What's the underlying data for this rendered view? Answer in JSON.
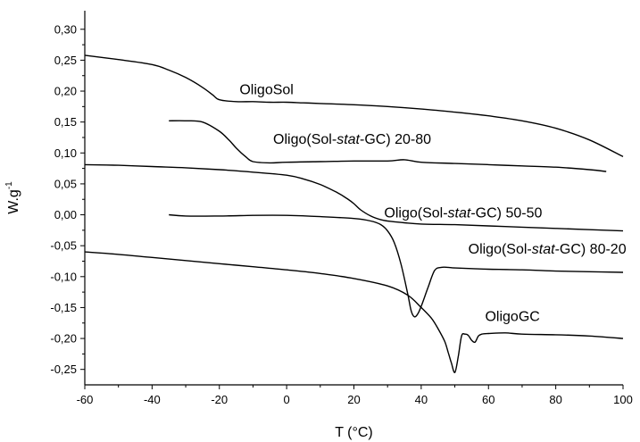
{
  "chart_data": {
    "type": "line",
    "xlabel": "T (°C)",
    "ylabel": "W.g",
    "ylabel_sup": "-1",
    "xlim": [
      -60,
      100
    ],
    "ylim": [
      -0.275,
      0.33
    ],
    "xticks": [
      -60,
      -40,
      -20,
      0,
      20,
      40,
      60,
      80,
      100
    ],
    "xtick_labels": [
      "-60",
      "-40",
      "-20",
      "0",
      "20",
      "40",
      "60",
      "80",
      "100"
    ],
    "yticks": [
      -0.25,
      -0.2,
      -0.15,
      -0.1,
      -0.05,
      0.0,
      0.05,
      0.1,
      0.15,
      0.2,
      0.25,
      0.3
    ],
    "ytick_labels": [
      "-0,25",
      "-0,20",
      "-0,15",
      "-0,10",
      "-0,05",
      "0,00",
      "0,05",
      "0,10",
      "0,15",
      "0,20",
      "0,25",
      "0,30"
    ],
    "grid": false,
    "series": [
      {
        "name": "OligoSol",
        "label": "OligoSol",
        "label_at": [
          -14,
          0.195
        ],
        "x": [
          -60,
          -50,
          -40,
          -35,
          -30,
          -25,
          -22,
          -20,
          -15,
          -10,
          -5,
          0,
          5,
          10,
          20,
          30,
          40,
          50,
          60,
          70,
          80,
          90,
          100
        ],
        "y": [
          0.258,
          0.251,
          0.243,
          0.234,
          0.222,
          0.206,
          0.194,
          0.186,
          0.183,
          0.183,
          0.182,
          0.182,
          0.181,
          0.18,
          0.178,
          0.175,
          0.171,
          0.166,
          0.16,
          0.152,
          0.14,
          0.121,
          0.094
        ]
      },
      {
        "name": "Oligo(Sol-stat-GC) 20-80",
        "label": "Oligo(Sol-stat-GC) 20-80",
        "label_pre": "Oligo(Sol-",
        "label_italic": "stat",
        "label_post": "-GC) 20-80",
        "label_at": [
          -4,
          0.115
        ],
        "x": [
          -35,
          -30,
          -25,
          -20,
          -17,
          -15,
          -12,
          -10,
          -5,
          0,
          10,
          20,
          30,
          35,
          40,
          50,
          60,
          70,
          80,
          90,
          95
        ],
        "y": [
          0.152,
          0.152,
          0.15,
          0.135,
          0.12,
          0.108,
          0.093,
          0.086,
          0.084,
          0.085,
          0.086,
          0.087,
          0.087,
          0.089,
          0.085,
          0.083,
          0.081,
          0.079,
          0.077,
          0.073,
          0.07
        ]
      },
      {
        "name": "Oligo(Sol-stat-GC) 50-50",
        "label": "Oligo(Sol-stat-GC) 50-50",
        "label_pre": "Oligo(Sol-",
        "label_italic": "stat",
        "label_post": "-GC) 50-50",
        "label_at": [
          29,
          -0.004
        ],
        "x": [
          -60,
          -50,
          -40,
          -30,
          -20,
          -10,
          0,
          5,
          10,
          15,
          18,
          20,
          22,
          25,
          28,
          30,
          35,
          40,
          50,
          60,
          70,
          80,
          90,
          100
        ],
        "y": [
          0.081,
          0.08,
          0.078,
          0.076,
          0.073,
          0.069,
          0.064,
          0.058,
          0.049,
          0.036,
          0.026,
          0.018,
          0.008,
          -0.002,
          -0.008,
          -0.01,
          -0.013,
          -0.015,
          -0.016,
          -0.018,
          -0.02,
          -0.022,
          -0.024,
          -0.026
        ]
      },
      {
        "name": "Oligo(Sol-stat-GC) 80-20",
        "label": "Oligo(Sol-stat-GC) 80-20",
        "label_pre": "Oligo(Sol-",
        "label_italic": "stat",
        "label_post": "-GC) 80-20",
        "label_at": [
          54,
          -0.063
        ],
        "x": [
          -35,
          -30,
          -20,
          -10,
          0,
          10,
          20,
          25,
          28,
          30,
          32,
          34,
          36,
          37,
          38,
          39,
          40,
          42,
          44,
          46,
          48,
          50,
          55,
          60,
          70,
          80,
          90,
          100
        ],
        "y": [
          0.0,
          -0.002,
          -0.002,
          -0.001,
          -0.001,
          -0.003,
          -0.006,
          -0.01,
          -0.016,
          -0.026,
          -0.045,
          -0.08,
          -0.128,
          -0.155,
          -0.165,
          -0.16,
          -0.148,
          -0.118,
          -0.09,
          -0.085,
          -0.085,
          -0.086,
          -0.087,
          -0.088,
          -0.089,
          -0.091,
          -0.092,
          -0.093
        ]
      },
      {
        "name": "OligoGC",
        "label": "OligoGC",
        "label_at": [
          59,
          -0.172
        ],
        "x": [
          -60,
          -50,
          -40,
          -30,
          -20,
          -10,
          0,
          10,
          20,
          30,
          36,
          40,
          43,
          45,
          47,
          48,
          49,
          50,
          51,
          52,
          53,
          54,
          55,
          56,
          57,
          58,
          60,
          65,
          70,
          80,
          90,
          100
        ],
        "y": [
          -0.06,
          -0.064,
          -0.069,
          -0.074,
          -0.079,
          -0.084,
          -0.089,
          -0.095,
          -0.103,
          -0.115,
          -0.13,
          -0.15,
          -0.167,
          -0.184,
          -0.205,
          -0.222,
          -0.24,
          -0.255,
          -0.23,
          -0.196,
          -0.193,
          -0.195,
          -0.203,
          -0.206,
          -0.196,
          -0.193,
          -0.192,
          -0.191,
          -0.193,
          -0.194,
          -0.196,
          -0.2
        ]
      }
    ]
  }
}
